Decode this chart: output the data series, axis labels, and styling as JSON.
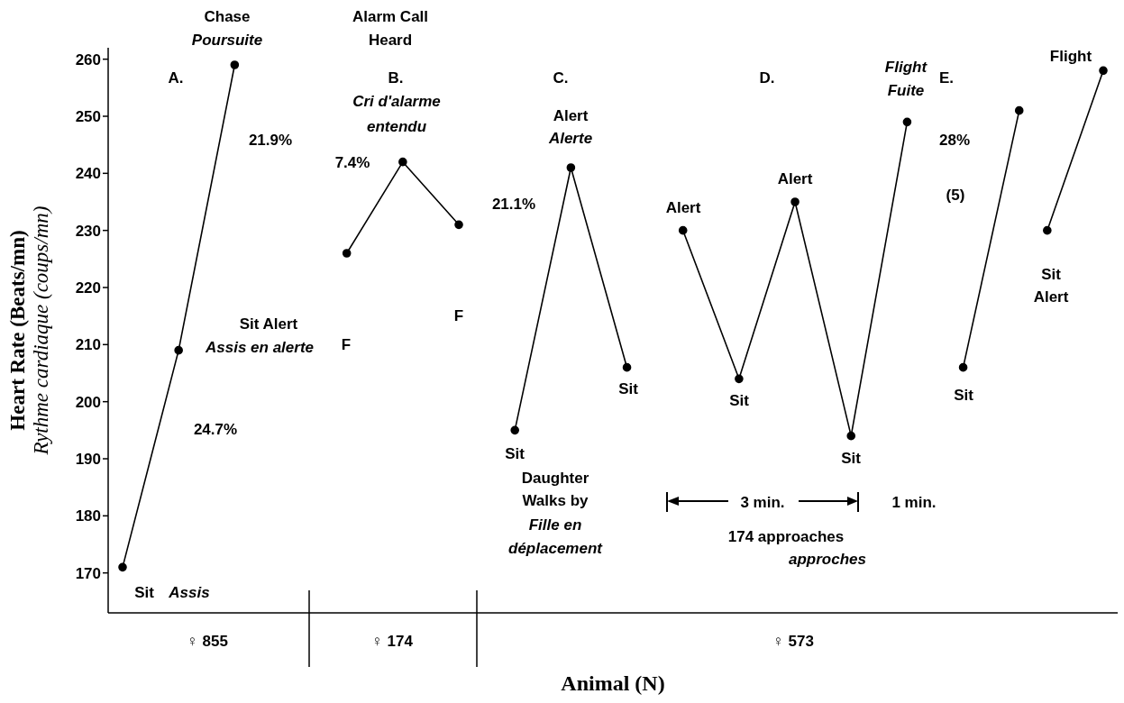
{
  "chart_data": {
    "type": "line",
    "xlabel": "Animal (N)",
    "ylabel": "Heart Rate (Beats/mn)\nRythme cardiaque (coups/mn)",
    "categories": [
      null,
      null,
      null,
      null,
      null,
      null,
      null,
      null,
      null,
      null,
      null,
      null,
      null,
      null,
      null,
      null,
      null,
      null,
      null,
      null,
      null,
      null,
      null,
      null,
      null,
      null,
      null,
      null,
      null,
      null,
      null,
      null,
      null,
      null,
      null,
      null
    ],
    "series": [
      {
        "color": "#000000",
        "values": [
          171,
          null,
          209,
          null,
          259,
          null,
          null,
          null,
          null,
          null,
          null,
          null,
          null,
          null,
          null,
          null,
          null,
          null,
          null,
          null,
          null,
          null,
          null,
          null,
          null,
          null,
          null,
          null,
          null,
          null,
          null,
          null,
          null,
          null,
          null,
          null
        ]
      },
      {
        "color": "#000000",
        "values": [
          null,
          null,
          null,
          null,
          null,
          null,
          null,
          null,
          226,
          null,
          242,
          null,
          231,
          null,
          null,
          null,
          null,
          null,
          null,
          null,
          null,
          null,
          null,
          null,
          null,
          null,
          null,
          null,
          null,
          null,
          null,
          null,
          null,
          null,
          null,
          null
        ]
      },
      {
        "color": "#000000",
        "values": [
          null,
          null,
          null,
          null,
          null,
          null,
          null,
          null,
          null,
          null,
          null,
          null,
          null,
          null,
          195,
          null,
          241,
          null,
          206,
          null,
          null,
          null,
          null,
          null,
          null,
          null,
          null,
          null,
          null,
          null,
          null,
          null,
          null,
          null,
          null,
          null
        ]
      },
      {
        "color": "#000000",
        "values": [
          null,
          null,
          null,
          null,
          null,
          null,
          null,
          null,
          null,
          null,
          null,
          null,
          null,
          null,
          null,
          null,
          null,
          null,
          null,
          null,
          230,
          null,
          204,
          null,
          235,
          null,
          194,
          null,
          249,
          null,
          null,
          null,
          null,
          null,
          null,
          null
        ]
      },
      {
        "color": "#000000",
        "values": [
          null,
          null,
          null,
          null,
          null,
          null,
          null,
          null,
          null,
          null,
          null,
          null,
          null,
          null,
          null,
          null,
          null,
          null,
          null,
          null,
          null,
          null,
          null,
          null,
          null,
          null,
          null,
          null,
          null,
          null,
          206,
          null,
          251,
          null,
          null,
          null
        ]
      },
      {
        "color": "#000000",
        "values": [
          null,
          null,
          null,
          null,
          null,
          null,
          null,
          null,
          null,
          null,
          null,
          null,
          null,
          null,
          null,
          null,
          null,
          null,
          null,
          null,
          null,
          null,
          null,
          null,
          null,
          null,
          null,
          null,
          null,
          null,
          null,
          null,
          null,
          230,
          null,
          258
        ]
      }
    ],
    "ylim": [
      163,
      262
    ],
    "yticks": [
      170,
      180,
      190,
      200,
      210,
      220,
      230,
      240,
      250,
      260
    ],
    "marker": "circle",
    "line_style": "solid",
    "annotations": [
      "Chase",
      "Poursuite",
      "A.",
      "21.9%",
      "Sit Alert",
      "Assis en alerte",
      "24.7%",
      "Sit",
      "Assis",
      "Alarm Call",
      "Heard",
      "B.",
      "Cri d'alarme",
      "entendu",
      "7.4%",
      "F",
      "F",
      "C.",
      "Alert",
      "Alerte",
      "21.1%",
      "Sit",
      "Sit",
      "Daughter",
      "Walks by",
      "Fille en",
      "déplacement",
      "D.",
      "Alert",
      "Alert",
      "Sit",
      "Sit",
      "Flight",
      "Fuite",
      "3 min.",
      "1 min.",
      "174 approaches",
      "approches",
      "E.",
      "28%",
      "(5)",
      "Sit",
      "Flight",
      "Sit",
      "Alert",
      "♀ 855",
      "♀ 174",
      "♀ 573"
    ]
  }
}
